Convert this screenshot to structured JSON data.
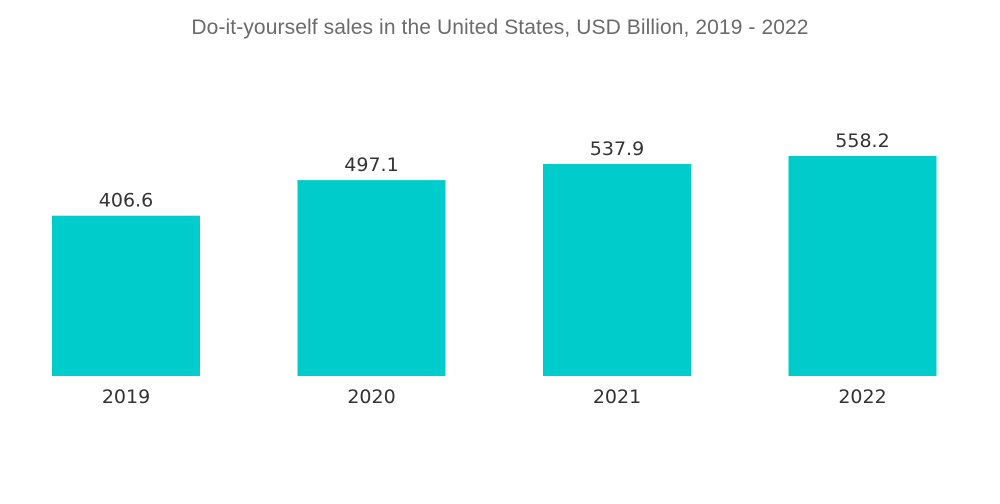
{
  "chart_data": {
    "type": "bar",
    "title": "Do-it-yourself sales in the United States, USD Billion, 2019 - 2022",
    "categories": [
      "2019",
      "2020",
      "2021",
      "2022"
    ],
    "values": [
      406.6,
      497.1,
      537.9,
      558.2
    ],
    "value_labels": [
      "406.6",
      "497.1",
      "537.9",
      "558.2"
    ],
    "xlabel": "",
    "ylabel": "",
    "ylim": [
      0,
      558.2
    ],
    "grid": false,
    "legend": "none",
    "bar_color": "#00cccc"
  }
}
